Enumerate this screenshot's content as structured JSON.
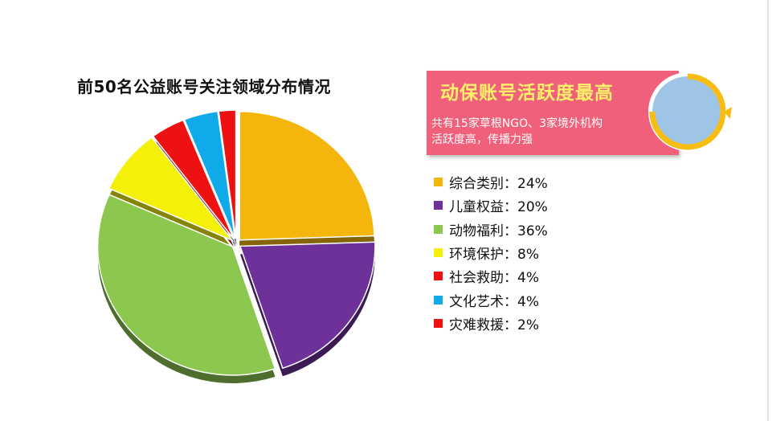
{
  "chart_data": {
    "type": "pie",
    "title": "前50名公益账号关注领域分布情况",
    "slices": [
      {
        "label": "综合类别",
        "value": 24,
        "display": "综合类别：24%",
        "color": "#f4b60c"
      },
      {
        "label": "儿童权益",
        "value": 20,
        "display": "儿童权益：20%",
        "color": "#6d3199"
      },
      {
        "label": "动物福利",
        "value": 36,
        "display": "动物福利：36%",
        "color": "#8cc850"
      },
      {
        "label": "环境保护",
        "value": 8,
        "display": "环境保护：8%",
        "color": "#f4f00a"
      },
      {
        "label": "社会救助",
        "value": 4,
        "display": "社会救助：4%",
        "color": "#ee1111"
      },
      {
        "label": "文化艺术",
        "value": 4,
        "display": "文化艺术：4%",
        "color": "#10aaea"
      },
      {
        "label": "灾难救援",
        "value": 2,
        "display": "灾难救援：2%",
        "color": "#ee1111"
      }
    ],
    "legend_placement": "right"
  },
  "callout": {
    "title": "动保账号活跃度最高",
    "line1": "共有15家草根NGO、3家境外机构",
    "line2": "活跃度高，传播力强",
    "bg_color": "#f0607a",
    "title_color": "#fff06a"
  },
  "ring_icon": "circular-arrow-icon"
}
